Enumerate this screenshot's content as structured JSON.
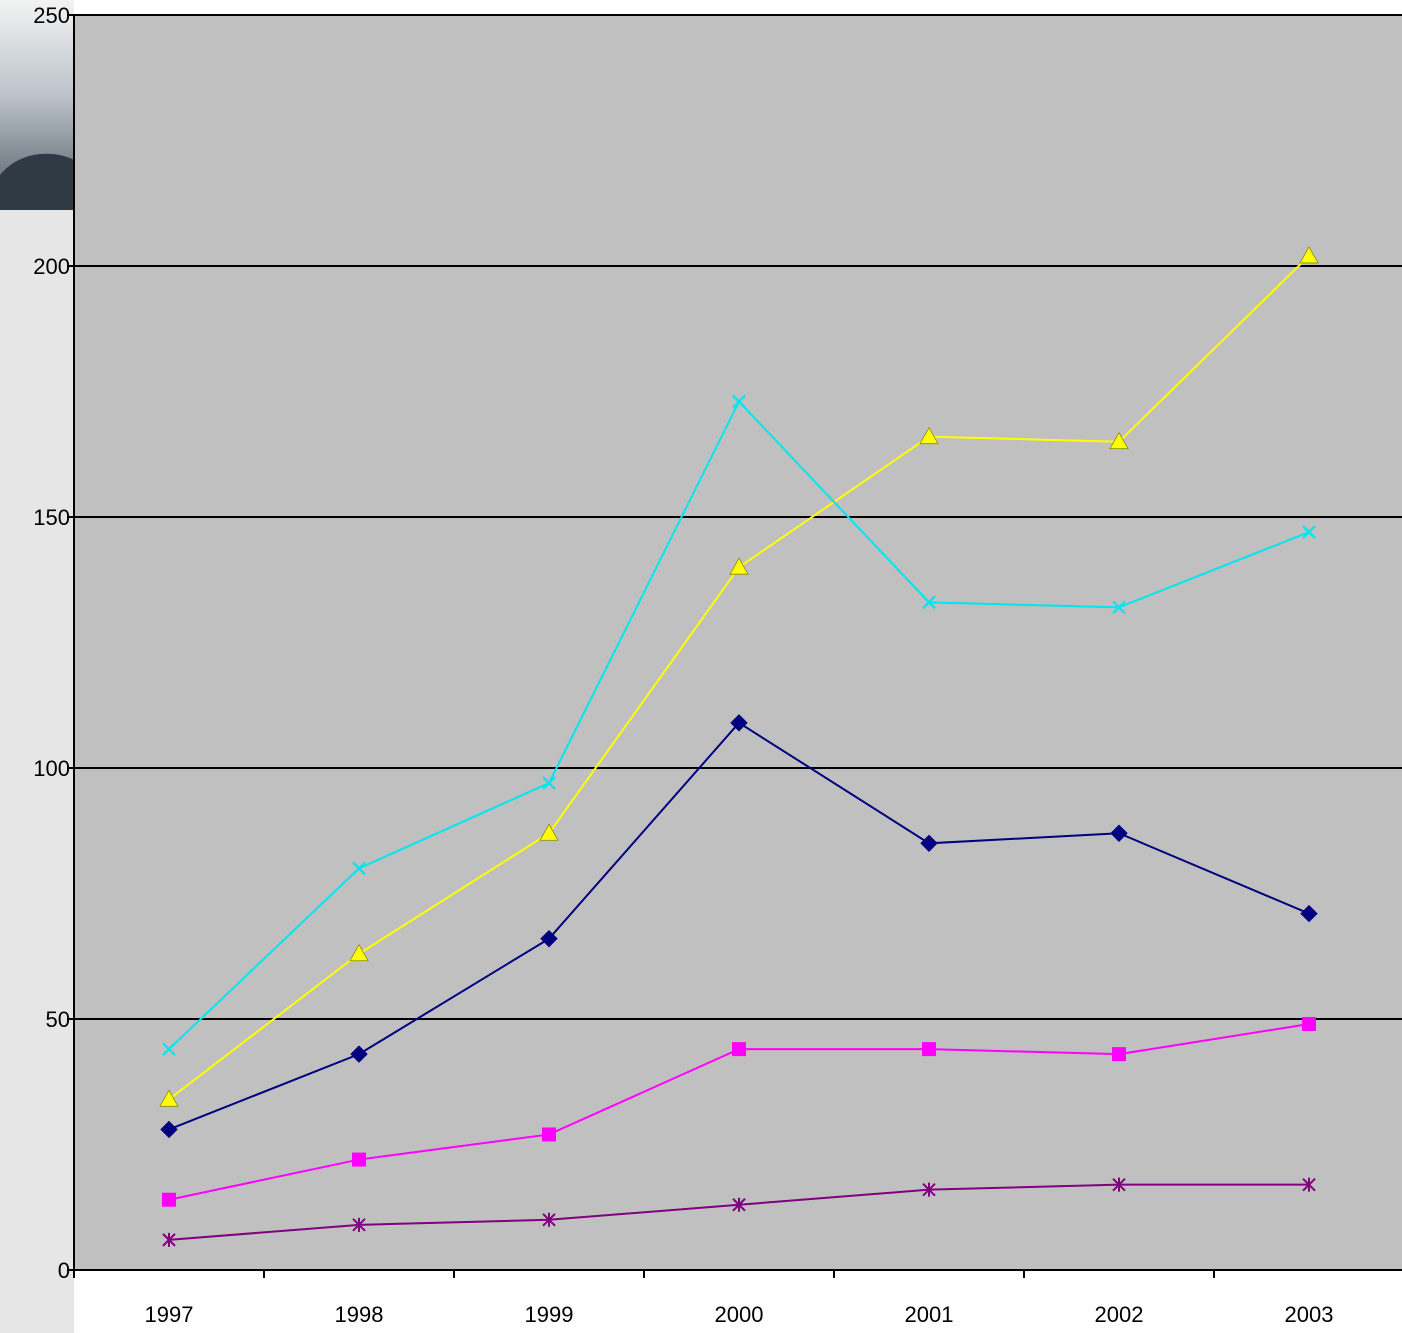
{
  "chart_data": {
    "type": "line",
    "title": "",
    "xlabel": "",
    "ylabel": "",
    "categories": [
      "1997",
      "1998",
      "1999",
      "2000",
      "2001",
      "2002",
      "2003"
    ],
    "ylim": [
      0,
      250
    ],
    "yticks": [
      0,
      50,
      100,
      150,
      200,
      250
    ],
    "grid": true,
    "legend": "none",
    "plot_background": "#c0c0c0",
    "series": [
      {
        "color": "#000080",
        "marker": "diamond",
        "values": [
          28,
          43,
          66,
          109,
          85,
          87,
          71
        ]
      },
      {
        "color": "#ff00ff",
        "marker": "square",
        "values": [
          14,
          22,
          27,
          44,
          44,
          43,
          49
        ]
      },
      {
        "color": "#ffff00",
        "marker": "triangle",
        "values": [
          34,
          63,
          87,
          140,
          166,
          165,
          202
        ]
      },
      {
        "color": "#00e5ee",
        "marker": "x",
        "values": [
          44,
          80,
          97,
          173,
          133,
          132,
          147
        ]
      },
      {
        "color": "#800080",
        "marker": "star",
        "values": [
          6,
          9,
          10,
          13,
          16,
          17,
          17
        ]
      }
    ]
  }
}
